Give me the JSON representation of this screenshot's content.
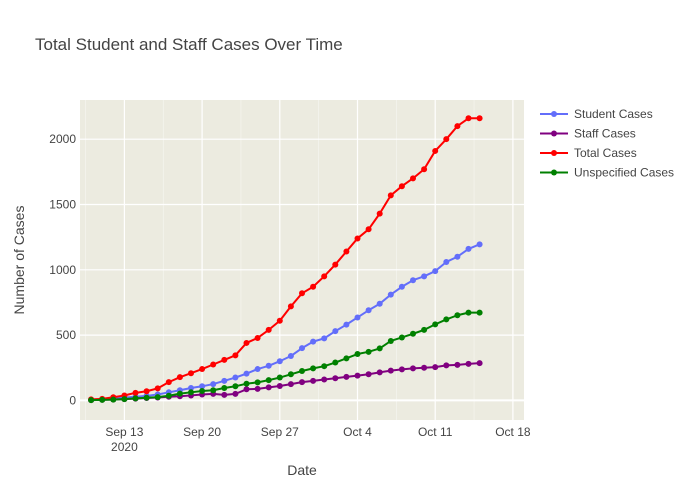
{
  "chart_data": {
    "type": "line",
    "title": "Total Student and Staff Cases Over Time",
    "xlabel": "Date",
    "ylabel": "Number of Cases",
    "x": [
      "2020-09-10",
      "2020-09-11",
      "2020-09-12",
      "2020-09-13",
      "2020-09-14",
      "2020-09-15",
      "2020-09-16",
      "2020-09-17",
      "2020-09-18",
      "2020-09-19",
      "2020-09-20",
      "2020-09-21",
      "2020-09-22",
      "2020-09-23",
      "2020-09-24",
      "2020-09-25",
      "2020-09-26",
      "2020-09-27",
      "2020-09-28",
      "2020-09-29",
      "2020-09-30",
      "2020-10-01",
      "2020-10-02",
      "2020-10-03",
      "2020-10-04",
      "2020-10-05",
      "2020-10-06",
      "2020-10-07",
      "2020-10-08",
      "2020-10-09",
      "2020-10-10",
      "2020-10-11",
      "2020-10-12",
      "2020-10-13",
      "2020-10-14",
      "2020-10-15"
    ],
    "series": [
      {
        "name": "Student Cases",
        "color": "#636efa",
        "values": [
          5,
          8,
          14,
          22,
          28,
          35,
          45,
          62,
          78,
          95,
          108,
          125,
          150,
          175,
          205,
          240,
          265,
          300,
          340,
          400,
          450,
          475,
          530,
          580,
          635,
          690,
          740,
          810,
          870,
          920,
          950,
          990,
          1060,
          1100,
          1160,
          1195
        ]
      },
      {
        "name": "Staff Cases",
        "color": "#800080",
        "values": [
          2,
          5,
          7,
          10,
          14,
          18,
          22,
          28,
          32,
          38,
          45,
          50,
          42,
          50,
          85,
          88,
          100,
          110,
          125,
          140,
          150,
          160,
          170,
          180,
          190,
          200,
          215,
          228,
          238,
          245,
          250,
          255,
          268,
          272,
          280,
          285
        ]
      },
      {
        "name": "Total Cases",
        "color": "#ff0000",
        "values": [
          8,
          12,
          24,
          38,
          58,
          70,
          92,
          140,
          178,
          208,
          240,
          275,
          310,
          345,
          440,
          478,
          540,
          610,
          720,
          820,
          870,
          950,
          1040,
          1140,
          1240,
          1310,
          1430,
          1570,
          1640,
          1700,
          1770,
          1910,
          2000,
          2100,
          2160,
          2160
        ]
      },
      {
        "name": "Unspecified Cases",
        "color": "#008000",
        "values": [
          2,
          4,
          6,
          10,
          16,
          20,
          25,
          36,
          52,
          62,
          72,
          78,
          95,
          108,
          128,
          138,
          155,
          175,
          200,
          225,
          245,
          262,
          290,
          322,
          355,
          372,
          398,
          455,
          482,
          510,
          540,
          582,
          620,
          652,
          672,
          672
        ]
      }
    ],
    "x_ticks": [
      {
        "date": "2020-09-13",
        "label": "Sep 13",
        "sublabel": "2020"
      },
      {
        "date": "2020-09-20",
        "label": "Sep 20",
        "sublabel": ""
      },
      {
        "date": "2020-09-27",
        "label": "Sep 27",
        "sublabel": ""
      },
      {
        "date": "2020-10-04",
        "label": "Oct 4",
        "sublabel": ""
      },
      {
        "date": "2020-10-11",
        "label": "Oct 11",
        "sublabel": ""
      },
      {
        "date": "2020-10-18",
        "label": "Oct 18",
        "sublabel": ""
      }
    ],
    "y_ticks": [
      0,
      500,
      1000,
      1500,
      2000
    ],
    "xlim": [
      "2020-09-09",
      "2020-10-19"
    ],
    "ylim": [
      -150,
      2300
    ],
    "grid": true,
    "legend_position": "top-right",
    "plot_background": "#ecebe0"
  }
}
